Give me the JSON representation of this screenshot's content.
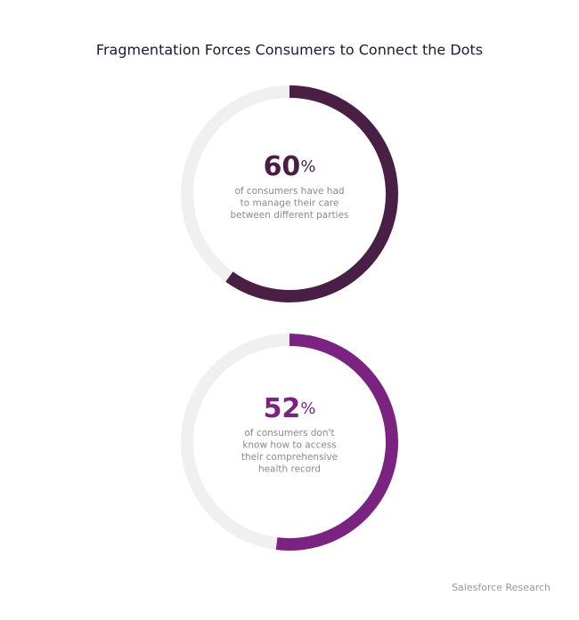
{
  "title": "Fragmentation Forces Consumers to Connect the Dots",
  "source": "Salesforce Research",
  "chart_data": [
    {
      "type": "donut",
      "values": [
        60
      ],
      "unit": "%",
      "ylim": [
        0,
        100
      ],
      "color": "#4a1f45",
      "track_color": "#f0f0f0",
      "description": [
        "of consumers have had",
        "to manage their care",
        "between different parties"
      ]
    },
    {
      "type": "donut",
      "values": [
        52
      ],
      "unit": "%",
      "ylim": [
        0,
        100
      ],
      "color": "#7b2381",
      "track_color": "#f0f0f0",
      "description": [
        "of consumers don't",
        "know how to access",
        "their comprehensive",
        "health record"
      ]
    }
  ]
}
